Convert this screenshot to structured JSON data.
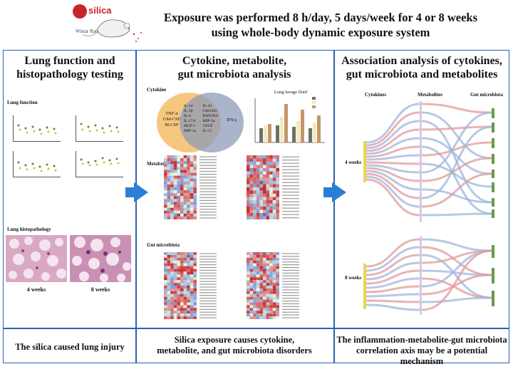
{
  "header": {
    "title_line1": "Exposure was performed 8 h/day, 5 days/week for 4 or 8 weeks",
    "title_line2": "using whole-body dynamic exposure system",
    "silica_label": "silica",
    "rat_label": "Wistar Rats"
  },
  "panel1": {
    "title_line1": "Lung function and",
    "title_line2": "histopathology testing",
    "lung_function_label": "Lung function",
    "histopathology_label": "Lung histopathology",
    "week4_label": "4 weeks",
    "week8_label": "8 weeks",
    "conclusion": "The silica caused lung injury"
  },
  "panel2": {
    "title_line1": "Cytokine, metabolite,",
    "title_line2": "gut microbiota analysis",
    "cytokine_label": "Cytokine",
    "venn_left": [
      "TNF-α",
      "GM-CSF",
      "M-CSF"
    ],
    "venn_middle": [
      "IL-1α",
      "IL-1β",
      "IL-6",
      "IL-17A",
      "MCP-1",
      "MIP-1α",
      "IL-10",
      "GRO/KC",
      "RANTES",
      "MIP-3α",
      "VEGF",
      "IL-13"
    ],
    "venn_right": "IFN-γ",
    "bar_chart_title": "Lung lavage fluid",
    "metabolite_label": "Metabolite",
    "gut_label": "Gut microbiota",
    "conclusion_line1": "Silica exposure causes cytokine,",
    "conclusion_line2": "metabolite, and gut microbiota disorders"
  },
  "panel3": {
    "title_line1": "Association analysis of cytokines,",
    "title_line2": "gut microbiota and metabolites",
    "col_cytokines": "Cytokines",
    "col_metabolites": "Metabolites",
    "col_gut": "Gut microbiota",
    "week4_label": "4 weeks",
    "week8_label": "8 weeks",
    "conclusion_line1": "The inflammation-metabolite-gut microbiota",
    "conclusion_line2": "correlation axis may be a potential mechanism"
  },
  "colors": {
    "frame": "#2b62b0",
    "arrow": "#2a7fd4",
    "venn_left": "#f5c77e",
    "venn_right": "#8e9bb8",
    "sankey_red": "#e39a9a",
    "sankey_blue": "#9fb6dd",
    "node_yellow": "#e8d84a",
    "node_green": "#6a9a4a"
  }
}
